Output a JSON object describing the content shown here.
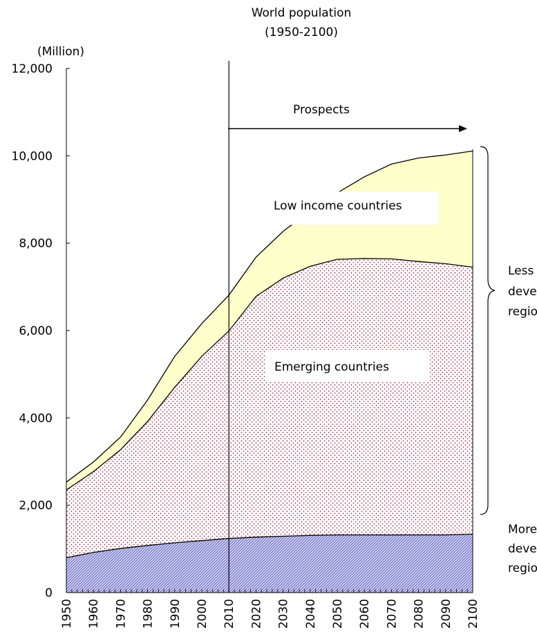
{
  "chart_data": {
    "type": "area",
    "title": "World population",
    "subtitle": "(1950-2100)",
    "ylabel": "(Million)",
    "xlabel": "",
    "ylim": [
      0,
      12000
    ],
    "yticks": [
      0,
      2000,
      4000,
      6000,
      8000,
      10000,
      12000
    ],
    "ytick_labels": [
      "0",
      "2,000",
      "4,000",
      "6,000",
      "8,000",
      "10,000",
      "12,000"
    ],
    "xlim": [
      1950,
      2100
    ],
    "xtick_labels": [
      "1950",
      "1960",
      "1970",
      "1980",
      "1990",
      "2000",
      "2010",
      "2020",
      "2030",
      "2040",
      "2050",
      "2060",
      "2070",
      "2080",
      "2090",
      "2100"
    ],
    "grid": false,
    "stacked": true,
    "x": [
      1950,
      1960,
      1970,
      1980,
      1990,
      2000,
      2010,
      2020,
      2030,
      2040,
      2050,
      2060,
      2070,
      2080,
      2090,
      2100
    ],
    "series": [
      {
        "name": "More developed regions",
        "values": [
          800,
          920,
          1010,
          1080,
          1140,
          1190,
          1240,
          1270,
          1290,
          1310,
          1320,
          1320,
          1320,
          1320,
          1320,
          1340
        ]
      },
      {
        "name": "Emerging countries",
        "values": [
          1550,
          1850,
          2260,
          2840,
          3560,
          4220,
          4750,
          5510,
          5910,
          6160,
          6310,
          6330,
          6320,
          6260,
          6210,
          6110
        ]
      },
      {
        "name": "Low income countries",
        "values": [
          180,
          220,
          290,
          490,
          710,
          750,
          820,
          900,
          1070,
          1280,
          1520,
          1870,
          2170,
          2370,
          2490,
          2660
        ]
      }
    ],
    "colors": {
      "low_income": "#FFFFCC",
      "emerging_base": "#FFFFFF",
      "emerging_dot": "#A3314E",
      "developed": "#CCCCEE",
      "developed_hatch": "#4B4FB5"
    },
    "divider_x": 2010,
    "annotations": {
      "prospects": "Prospects",
      "low_income_label": "Low income countries",
      "emerging_label": "Emerging countries",
      "less_developed": [
        "Less",
        "deve",
        "regio"
      ],
      "more_developed": [
        "More",
        "deve",
        "regio"
      ]
    }
  }
}
